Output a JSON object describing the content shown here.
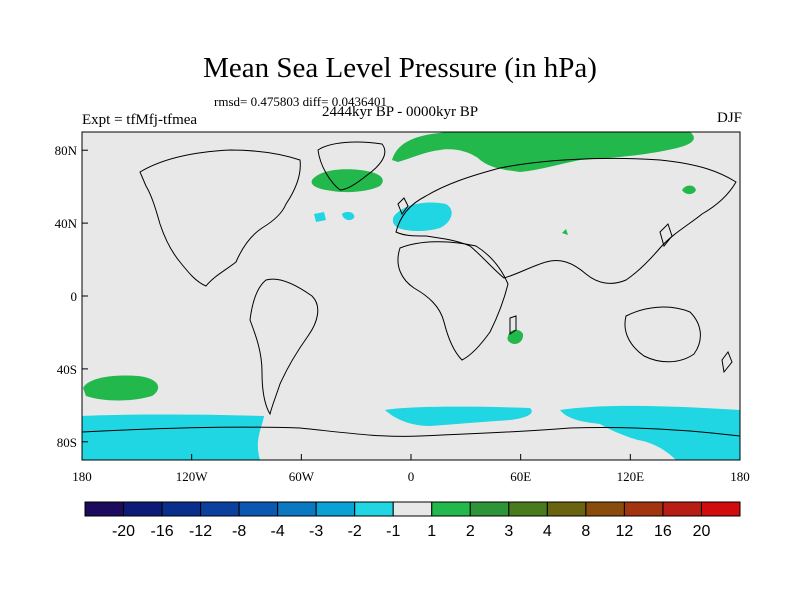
{
  "title": "Mean Sea Level Pressure (in hPa)",
  "stats": "rmsd= 0.475803 diff= 0.0436401",
  "experiment": "Expt = tfMfj-tfmea",
  "period": "2444kyr BP - 0000kyr BP",
  "season": "DJF",
  "map": {
    "lon_range": [
      -180,
      180
    ],
    "lat_range": [
      -90,
      90
    ],
    "background_color": "#e8e8e8",
    "x_ticks": [
      "180",
      "120W",
      "60W",
      "0",
      "60E",
      "120E",
      "180"
    ],
    "y_ticks": [
      "80N",
      "40N",
      "0",
      "40S",
      "80S"
    ]
  },
  "colorbar": {
    "labels": [
      "-20",
      "-16",
      "-12",
      "-8",
      "-4",
      "-3",
      "-2",
      "-1",
      "1",
      "2",
      "3",
      "4",
      "8",
      "12",
      "16",
      "20"
    ],
    "colors": [
      "#1b0a5e",
      "#0e1a78",
      "#0a2e8c",
      "#0b409e",
      "#0a58b2",
      "#0b78c2",
      "#0aa2d4",
      "#1fd6e2",
      "#e8e8e8",
      "#22b84c",
      "#2e9438",
      "#4a7a1e",
      "#6a6310",
      "#8a4c0c",
      "#a33410",
      "#b81e14",
      "#d00c0c"
    ]
  },
  "colors": {
    "land_line": "#000000",
    "positive": "#22b84c",
    "negative": "#1fd6e2"
  }
}
